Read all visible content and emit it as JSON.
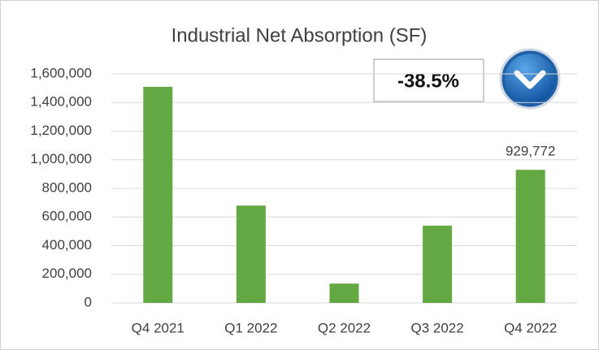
{
  "chart_data": {
    "type": "bar",
    "title": "Industrial Net Absorption (SF)",
    "categories": [
      "Q4 2021",
      "Q1 2022",
      "Q2 2022",
      "Q3 2022",
      "Q4 2022"
    ],
    "values": [
      1510000,
      680000,
      135000,
      540000,
      929772
    ],
    "value_labels": [
      null,
      null,
      null,
      null,
      "929,772"
    ],
    "color": "#64a844",
    "ylim": [
      0,
      1600000
    ],
    "yticks": [
      0,
      {
        "value": 200000,
        "label": "200,000"
      },
      {
        "value": 400000,
        "label": "400,000"
      },
      {
        "value": 600000,
        "label": "600,000"
      },
      {
        "value": 800000,
        "label": "800,000"
      },
      {
        "value": 1000000,
        "label": "1,000,000"
      },
      {
        "value": 1200000,
        "label": "1,200,000"
      },
      {
        "value": 1400000,
        "label": "1,400,000"
      },
      {
        "value": 1600000,
        "label": "1,600,000"
      }
    ],
    "grid": true,
    "annotation": "-38.5%"
  }
}
